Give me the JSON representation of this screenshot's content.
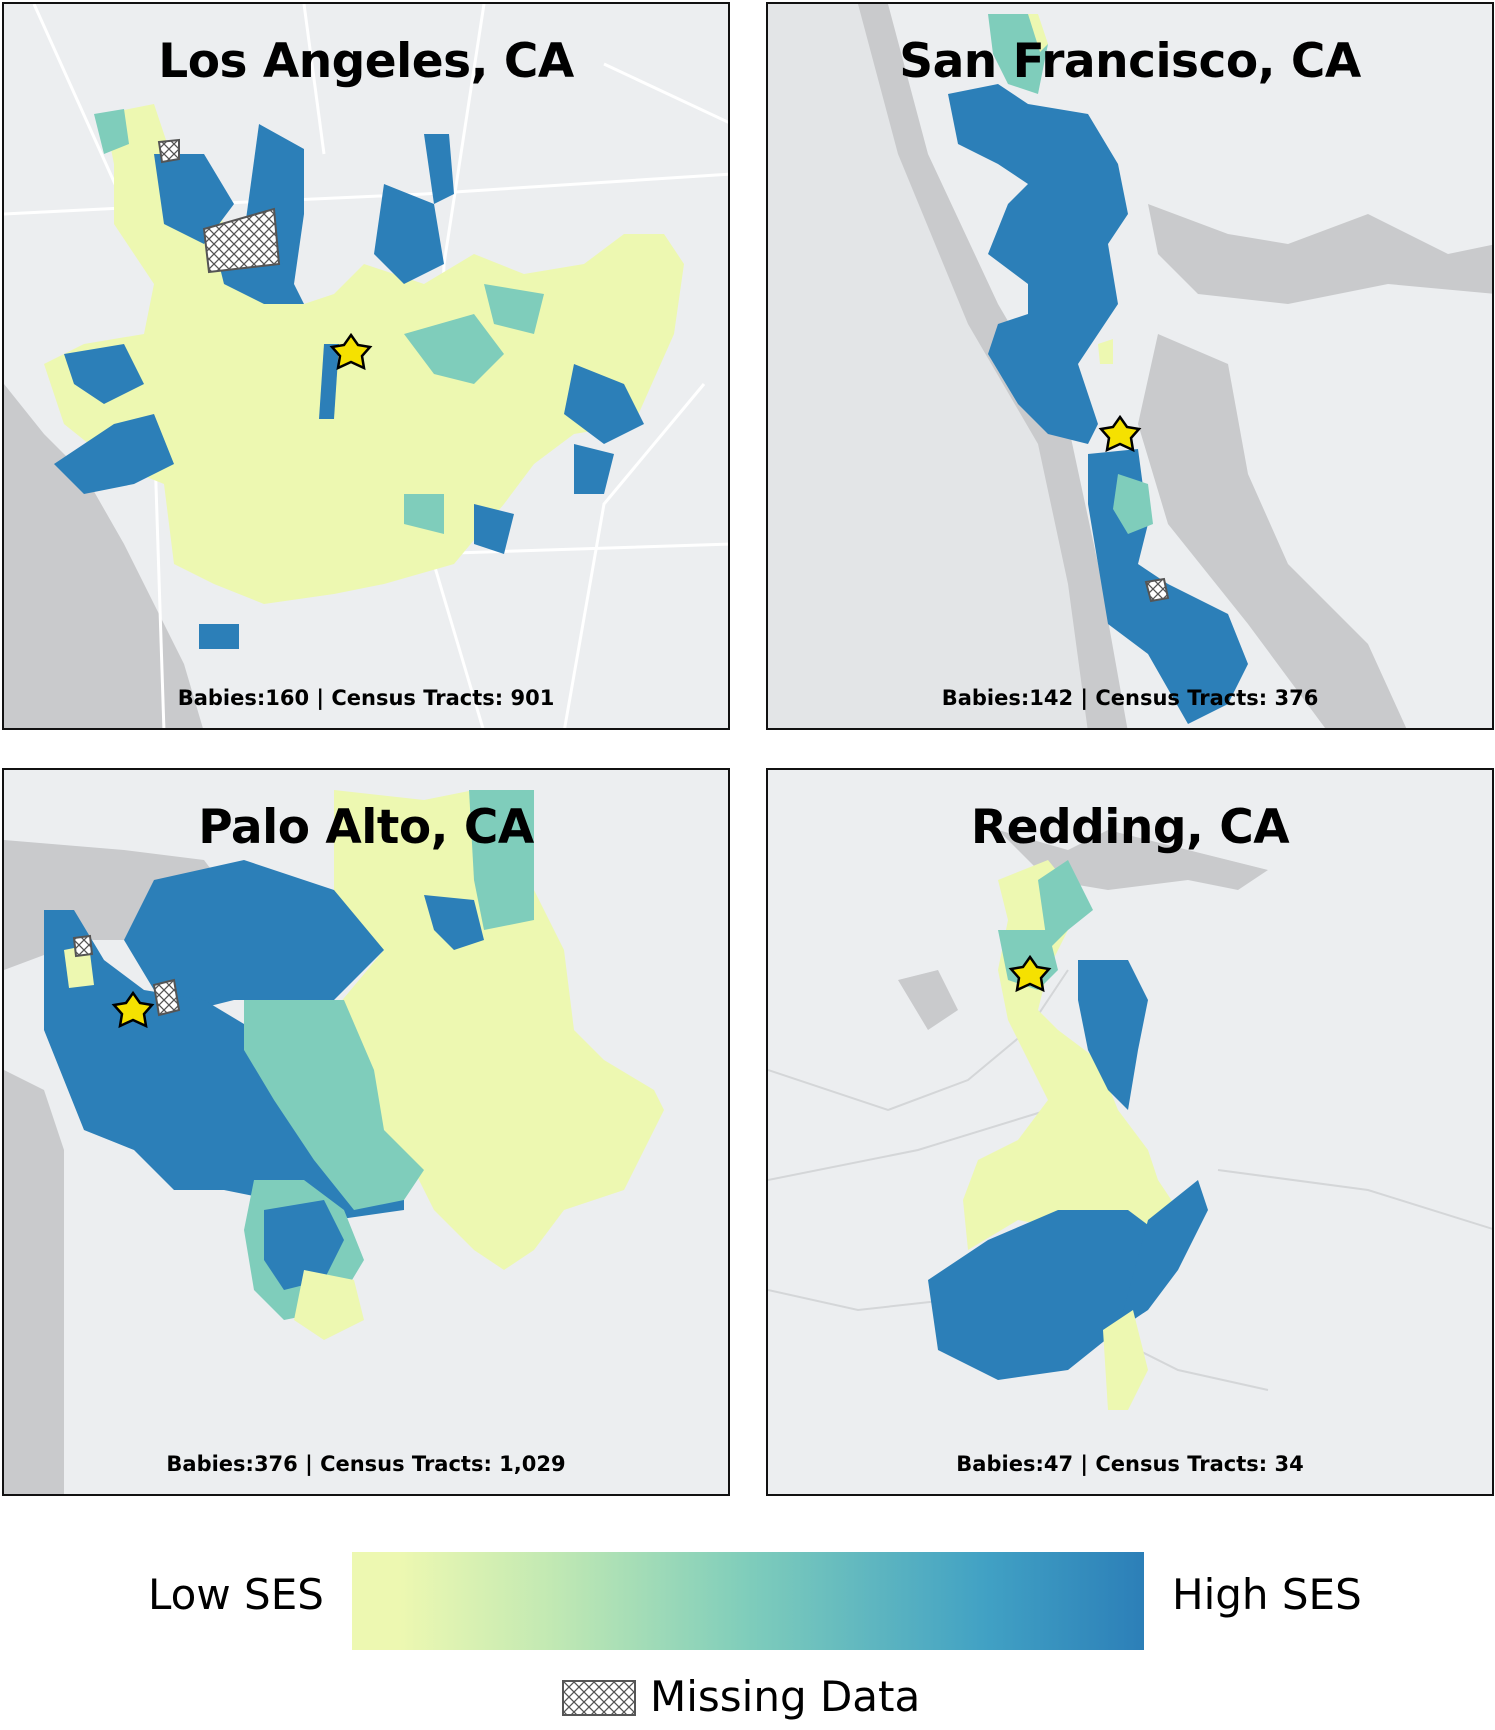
{
  "panels": [
    {
      "title": "Los Angeles, CA",
      "caption": "Babies:160 | Census Tracts: 901"
    },
    {
      "title": "San Francisco, CA",
      "caption": "Babies:142 | Census Tracts: 376"
    },
    {
      "title": "Palo Alto, CA",
      "caption": "Babies:376 | Census Tracts: 1,029"
    },
    {
      "title": "Redding, CA",
      "caption": "Babies:47 | Census Tracts: 34"
    }
  ],
  "legend": {
    "low_label": "Low SES",
    "high_label": "High SES",
    "missing_label": "Missing Data",
    "colors": {
      "low": "#edf8b1",
      "mid": "#7fcdbb",
      "high": "#2c7fb8",
      "missing": "#bdbdbd"
    }
  },
  "map_colors": {
    "water": "#c9cacc",
    "land": "#eceef0",
    "roads": "#ffffff",
    "star": "#f5e100"
  }
}
